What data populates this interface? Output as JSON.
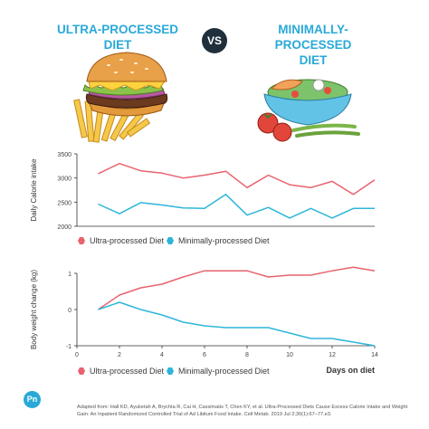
{
  "header": {
    "left_title_line1": "ULTRA-PROCESSED",
    "left_title_line2": "DIET",
    "vs_label": "VS",
    "right_title_line1": "MINIMALLY-PROCESSED",
    "right_title_line2": "DIET"
  },
  "colors": {
    "ultra": "#e8636f",
    "minimal": "#2eb6d9",
    "title": "#29a9d8",
    "vs_bg": "#1f2f3b"
  },
  "illustrations": [
    "burger-and-fries-icon",
    "salad-bowl-icon"
  ],
  "chart_data": [
    {
      "type": "line",
      "ylabel": "Daily Calorie intake",
      "ylim": [
        2000,
        3500
      ],
      "yticks": [
        "2000",
        "2500",
        "3000",
        "3500"
      ],
      "x": [
        1,
        2,
        3,
        4,
        5,
        6,
        7,
        8,
        9,
        10,
        11,
        12,
        13,
        14
      ],
      "xlim": [
        0,
        14
      ],
      "series": [
        {
          "name": "Ultra-processed Diet",
          "values": [
            3090,
            3300,
            3150,
            3100,
            3000,
            3060,
            3140,
            2800,
            3060,
            2860,
            2800,
            2930,
            2660,
            2960
          ]
        },
        {
          "name": "Minimally-processed Diet",
          "values": [
            2460,
            2260,
            2490,
            2440,
            2380,
            2370,
            2660,
            2230,
            2390,
            2170,
            2370,
            2170,
            2370,
            2370
          ]
        }
      ],
      "legend": [
        "Ultra-processed Diet",
        "Minimally-processed Diet"
      ]
    },
    {
      "type": "line",
      "ylabel": "Body weight change (kg)",
      "xlabel": "Days on diet",
      "ylim": [
        -1,
        1
      ],
      "yticks": [
        "-1",
        "0",
        "1"
      ],
      "xlim": [
        0,
        14
      ],
      "xticks": [
        "0",
        "2",
        "4",
        "6",
        "8",
        "10",
        "12",
        "14"
      ],
      "x": [
        1,
        2,
        3,
        4,
        5,
        6,
        7,
        8,
        9,
        10,
        11,
        12,
        13,
        14
      ],
      "series": [
        {
          "name": "Ultra-processed Diet",
          "values": [
            0.0,
            0.4,
            0.6,
            0.7,
            0.9,
            1.07,
            1.07,
            1.07,
            0.9,
            0.95,
            0.95,
            1.07,
            1.17,
            1.07
          ]
        },
        {
          "name": "Minimally-processed Diet",
          "values": [
            0.0,
            0.2,
            0.0,
            -0.15,
            -0.35,
            -0.45,
            -0.5,
            -0.5,
            -0.5,
            -0.65,
            -0.8,
            -0.8,
            -0.9,
            -1.0
          ]
        }
      ],
      "legend": [
        "Ultra-processed Diet",
        "Minimally-processed Diet"
      ]
    }
  ],
  "footer": {
    "logo_text": "Pn",
    "citation": "Adapted from: Hall KD, Ayuketah A, Brychta R, Cai H, Cassimatis T, Chen KY, et al. Ultra-Processed Diets Cause Excess Calorie Intake and Weight Gain: An Inpatient Randomized Controlled Trial of Ad Libitum Food Intake. Cell Metab. 2019 Jul 2;30(1):67–77.e3."
  }
}
